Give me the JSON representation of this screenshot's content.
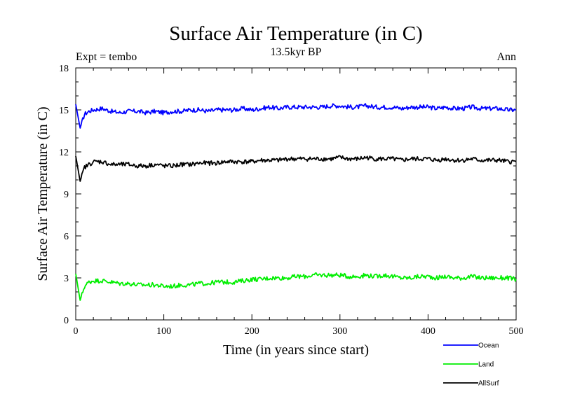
{
  "chart_data": {
    "type": "line",
    "title": "Surface Air Temperature (in C)",
    "subtitle": "13.5kyr BP",
    "left_note": "Expt = tembo",
    "right_note": "Ann",
    "xlabel": "Time (in years since start)",
    "ylabel": "Surface Air Temperature (in C)",
    "xlim": [
      0,
      500
    ],
    "ylim": [
      0,
      18
    ],
    "xticks": [
      0,
      100,
      200,
      300,
      400,
      500
    ],
    "yticks": [
      0,
      3,
      6,
      9,
      12,
      15,
      18
    ],
    "grid": false,
    "legend_position": "bottom-right",
    "x": [
      0,
      5,
      10,
      15,
      20,
      30,
      40,
      50,
      60,
      70,
      80,
      90,
      100,
      110,
      120,
      130,
      140,
      150,
      160,
      170,
      180,
      190,
      200,
      210,
      220,
      230,
      240,
      250,
      260,
      270,
      280,
      290,
      300,
      310,
      320,
      330,
      340,
      350,
      360,
      370,
      380,
      390,
      400,
      410,
      420,
      430,
      440,
      450,
      460,
      470,
      480,
      490,
      500
    ],
    "series": [
      {
        "name": "Ocean",
        "color": "#0000ff",
        "values": [
          15.4,
          13.7,
          14.7,
          14.9,
          15.0,
          15.1,
          14.9,
          14.8,
          14.9,
          14.9,
          14.8,
          14.9,
          14.8,
          14.9,
          14.9,
          15.0,
          15.0,
          14.9,
          15.0,
          15.0,
          15.0,
          15.1,
          15.0,
          15.1,
          15.2,
          15.1,
          15.2,
          15.2,
          15.2,
          15.2,
          15.2,
          15.3,
          15.3,
          15.2,
          15.2,
          15.3,
          15.2,
          15.2,
          15.2,
          15.1,
          15.2,
          15.2,
          15.2,
          15.1,
          15.2,
          15.1,
          15.1,
          15.2,
          15.1,
          15.1,
          15.1,
          15.0,
          15.0
        ]
      },
      {
        "name": "Land",
        "color": "#00ee00",
        "values": [
          3.3,
          1.4,
          2.4,
          2.7,
          2.8,
          2.8,
          2.7,
          2.6,
          2.6,
          2.5,
          2.5,
          2.5,
          2.4,
          2.4,
          2.5,
          2.5,
          2.6,
          2.6,
          2.7,
          2.7,
          2.7,
          2.8,
          2.9,
          2.9,
          3.0,
          3.0,
          3.0,
          3.1,
          3.1,
          3.2,
          3.2,
          3.2,
          3.2,
          3.1,
          3.1,
          3.2,
          3.1,
          3.2,
          3.1,
          3.0,
          3.0,
          3.1,
          3.1,
          3.0,
          3.1,
          3.0,
          3.0,
          3.1,
          3.0,
          3.0,
          3.0,
          3.0,
          2.9
        ]
      },
      {
        "name": "AllSurf",
        "color": "#000000",
        "values": [
          11.7,
          9.9,
          10.9,
          11.1,
          11.3,
          11.3,
          11.1,
          11.1,
          11.1,
          11.0,
          11.0,
          11.1,
          11.0,
          11.0,
          11.1,
          11.1,
          11.2,
          11.2,
          11.2,
          11.3,
          11.3,
          11.3,
          11.3,
          11.4,
          11.4,
          11.4,
          11.5,
          11.5,
          11.5,
          11.5,
          11.5,
          11.5,
          11.6,
          11.5,
          11.5,
          11.6,
          11.5,
          11.5,
          11.5,
          11.4,
          11.5,
          11.5,
          11.5,
          11.4,
          11.5,
          11.4,
          11.4,
          11.5,
          11.4,
          11.4,
          11.4,
          11.3,
          11.3
        ]
      }
    ]
  }
}
